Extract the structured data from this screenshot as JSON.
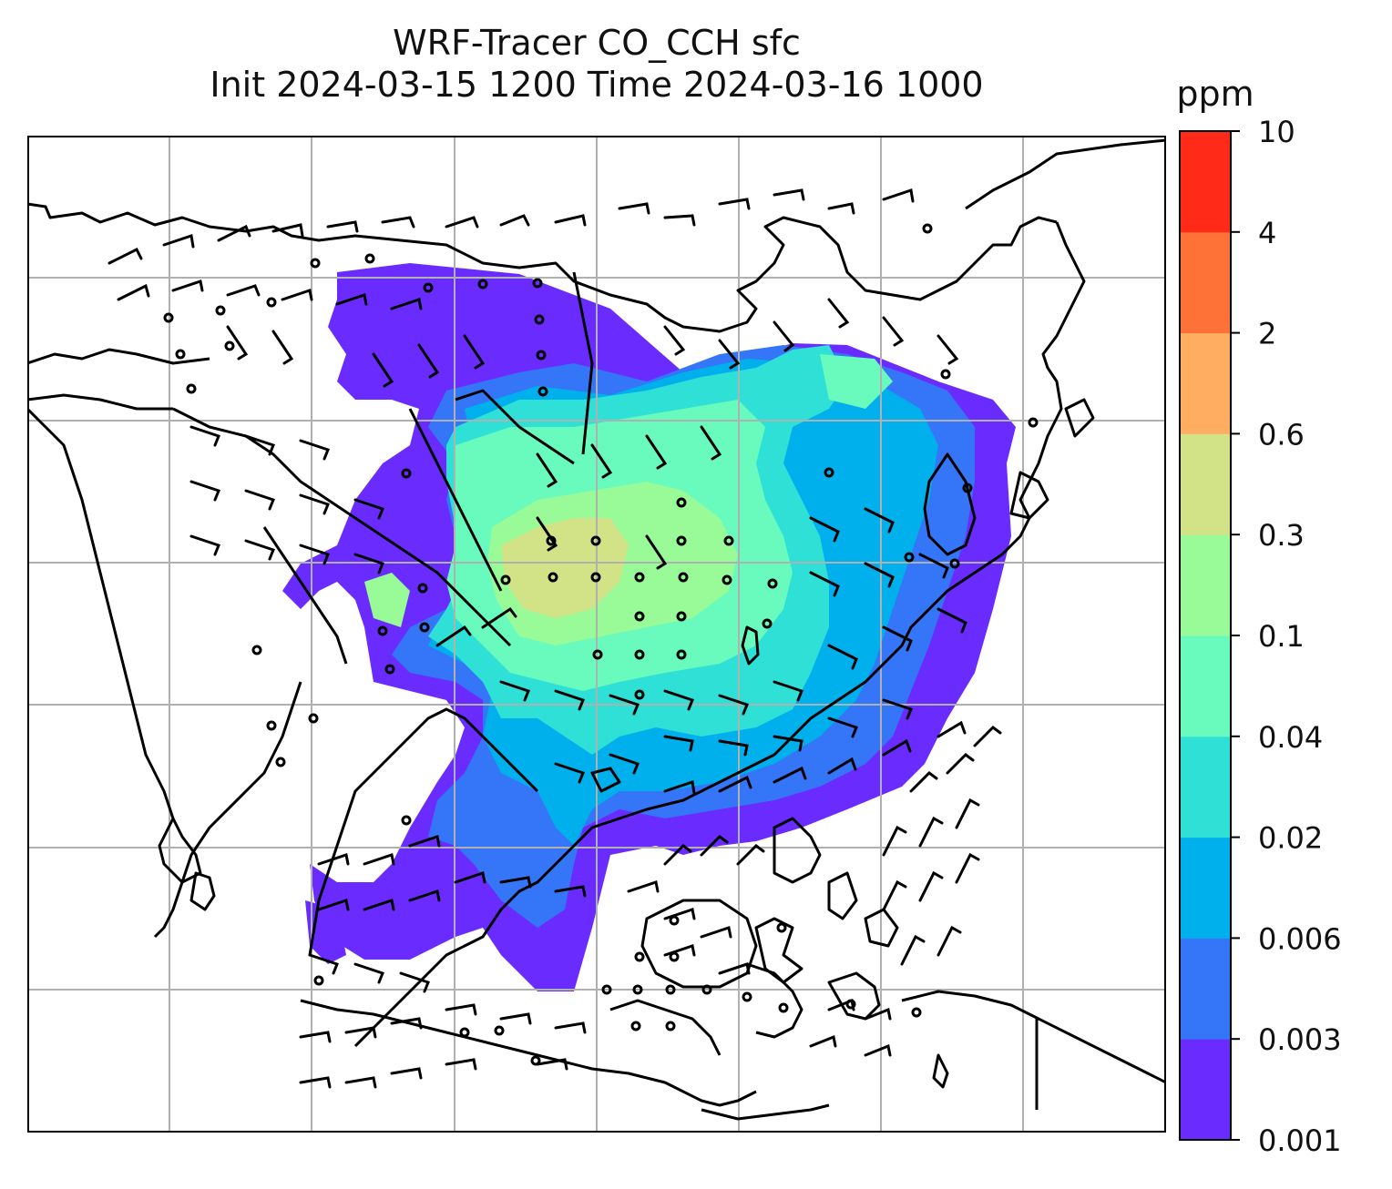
{
  "title": {
    "line1": "WRF-Tracer CO_CCH sfc",
    "line2": "Init 2024-03-15 1200 Time 2024-03-16 1000"
  },
  "colorbar": {
    "unit_label": "ppm",
    "ticks": [
      "0.001",
      "0.003",
      "0.006",
      "0.02",
      "0.04",
      "0.1",
      "0.3",
      "0.6",
      "2",
      "4",
      "10"
    ],
    "colors": [
      "#6a2bff",
      "#3575f7",
      "#00b0ec",
      "#2ee0d5",
      "#68fbbd",
      "#98fb98",
      "#d1e287",
      "#ffad60",
      "#ff7237",
      "#ff2b18"
    ]
  },
  "map": {
    "gridlines": true,
    "barb_color": "#000000",
    "coastline_color": "#000000"
  }
}
